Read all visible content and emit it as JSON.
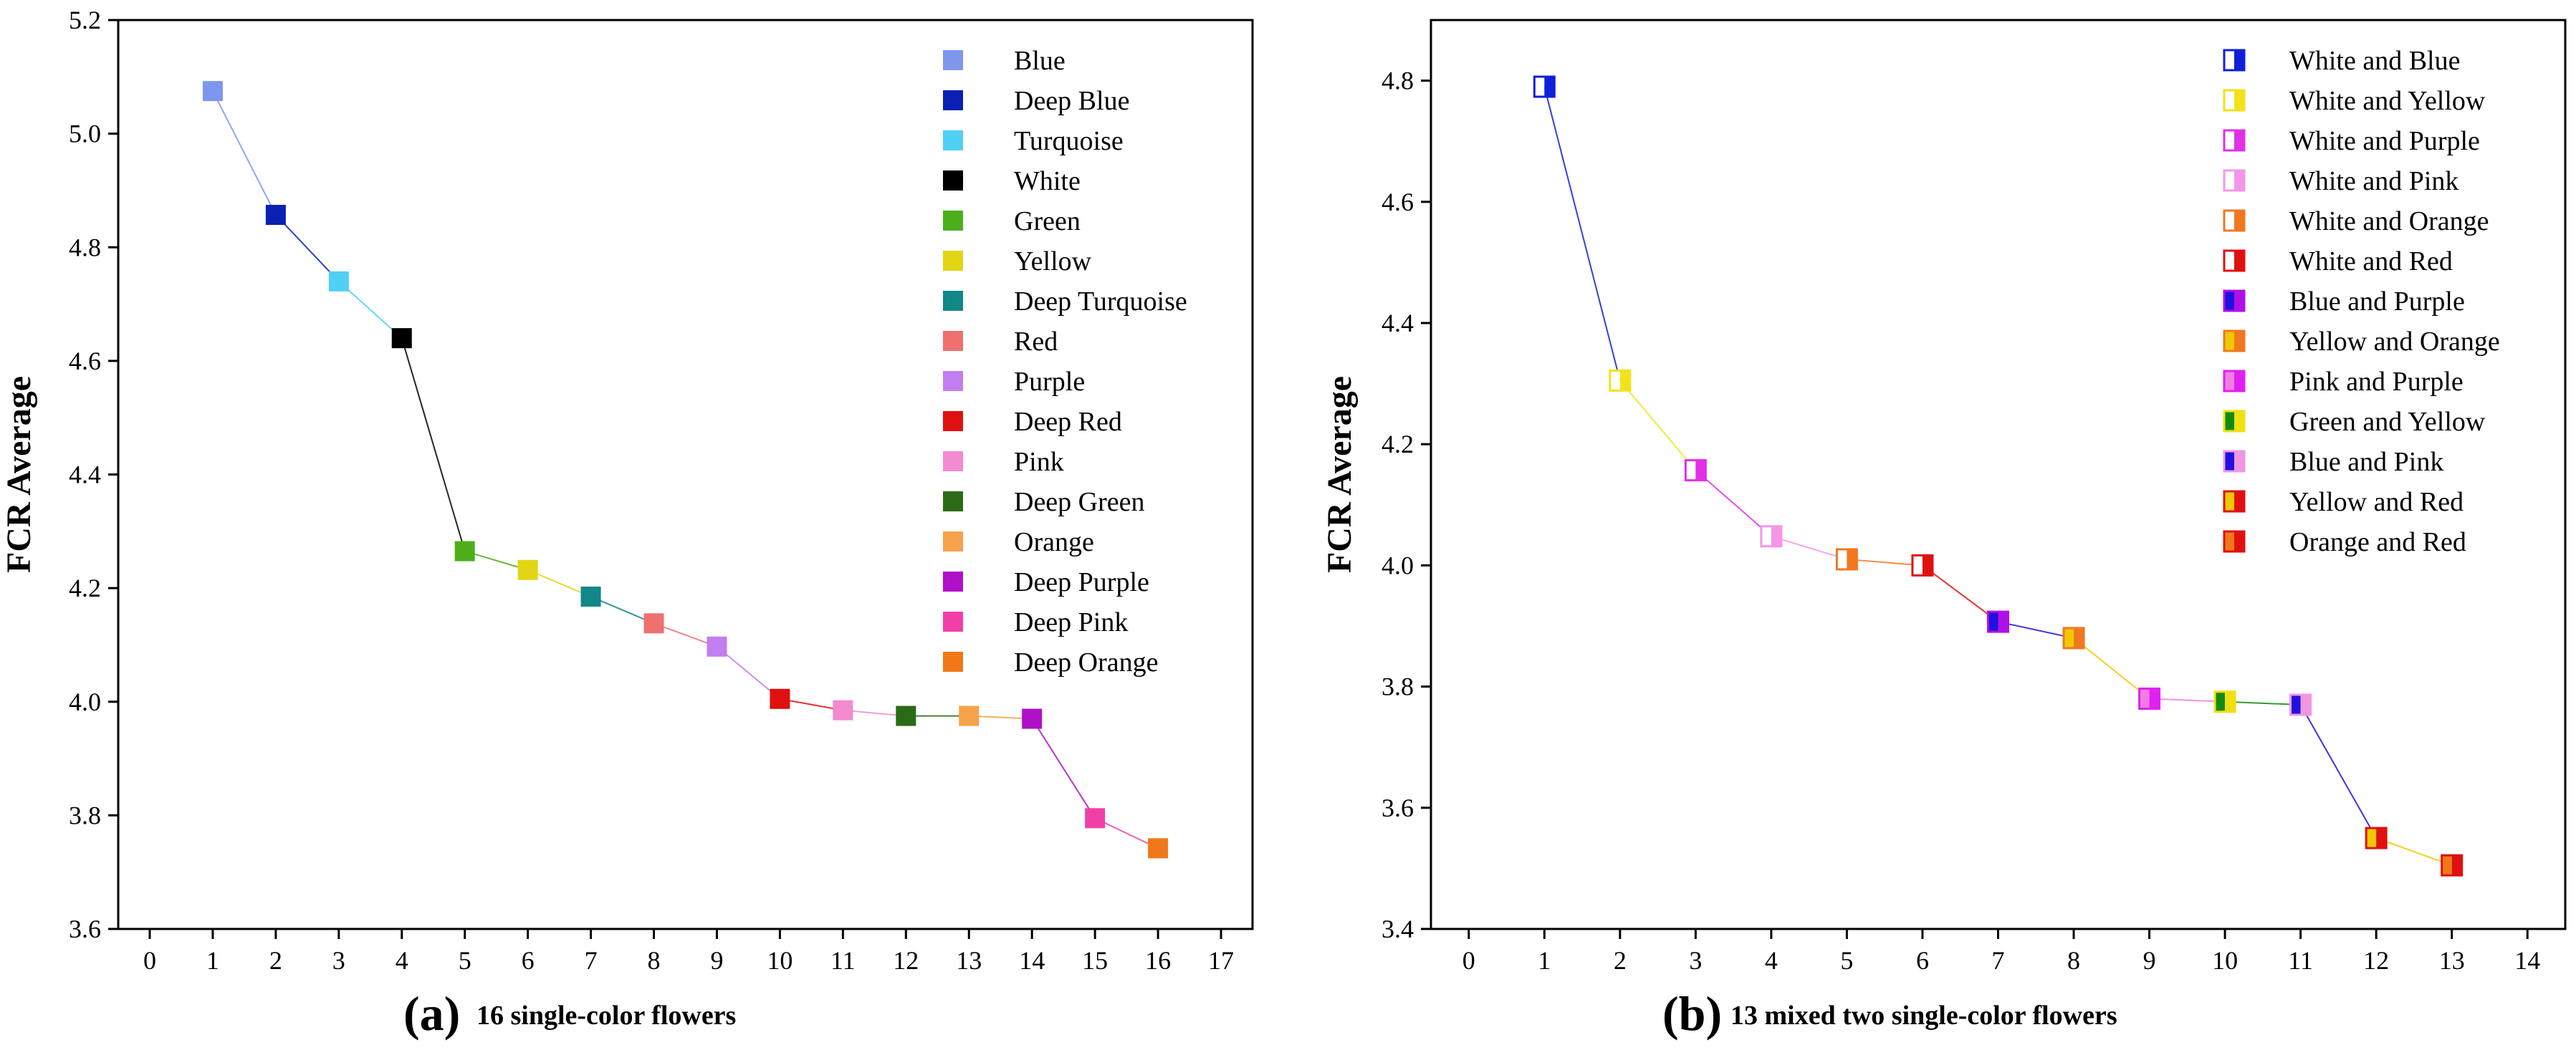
{
  "chart_data": [
    {
      "type": "line",
      "panel_label": "(a)",
      "caption": "16 single-color flowers",
      "title": "",
      "xlabel": "",
      "ylabel": "FCR Average",
      "xlim": [
        -0.5,
        17.5
      ],
      "ylim": [
        3.6,
        5.2
      ],
      "xticks": [
        "0",
        "1",
        "2",
        "3",
        "4",
        "5",
        "6",
        "7",
        "8",
        "9",
        "10",
        "11",
        "12",
        "13",
        "14",
        "15",
        "16",
        "17"
      ],
      "yticks": [
        "3.6",
        "3.8",
        "4.0",
        "4.2",
        "4.4",
        "4.6",
        "4.8",
        "5.0",
        "5.2"
      ],
      "legend_position": "top-right",
      "series": [
        {
          "name": "Blue",
          "x": 1,
          "y": 5.075,
          "color": "#7f96ef",
          "marker": "solid"
        },
        {
          "name": "Deep Blue",
          "x": 2,
          "y": 4.857,
          "color": "#0a20b4",
          "marker": "solid"
        },
        {
          "name": "Turquoise",
          "x": 3,
          "y": 4.74,
          "color": "#4fd0f5",
          "marker": "solid"
        },
        {
          "name": "White",
          "x": 4,
          "y": 4.64,
          "color": "#000000",
          "marker": "solid"
        },
        {
          "name": "Green",
          "x": 5,
          "y": 4.265,
          "color": "#4caf1a",
          "marker": "solid"
        },
        {
          "name": "Yellow",
          "x": 6,
          "y": 4.232,
          "color": "#e2d614",
          "marker": "solid"
        },
        {
          "name": "Deep Turquoise",
          "x": 7,
          "y": 4.185,
          "color": "#118787",
          "marker": "solid"
        },
        {
          "name": "Red",
          "x": 8,
          "y": 4.138,
          "color": "#f07070",
          "marker": "solid"
        },
        {
          "name": "Purple",
          "x": 9,
          "y": 4.097,
          "color": "#c07ef0",
          "marker": "solid"
        },
        {
          "name": "Deep Red",
          "x": 10,
          "y": 4.005,
          "color": "#e01010",
          "marker": "solid"
        },
        {
          "name": "Pink",
          "x": 11,
          "y": 3.985,
          "color": "#f48ad0",
          "marker": "solid"
        },
        {
          "name": "Deep Green",
          "x": 12,
          "y": 3.975,
          "color": "#2c6b16",
          "marker": "solid"
        },
        {
          "name": "Orange",
          "x": 13,
          "y": 3.975,
          "color": "#f6a24a",
          "marker": "solid"
        },
        {
          "name": "Deep Purple",
          "x": 14,
          "y": 3.97,
          "color": "#b010c8",
          "marker": "solid"
        },
        {
          "name": "Deep Pink",
          "x": 15,
          "y": 3.795,
          "color": "#f040a8",
          "marker": "solid"
        },
        {
          "name": "Deep Orange",
          "x": 16,
          "y": 3.742,
          "color": "#f07818",
          "marker": "solid"
        }
      ]
    },
    {
      "type": "line",
      "panel_label": "(b)",
      "caption": "13 mixed two single-color flowers",
      "title": "",
      "xlabel": "",
      "ylabel": "FCR Average",
      "xlim": [
        -0.5,
        14.5
      ],
      "ylim": [
        3.4,
        4.9
      ],
      "xticks": [
        "0",
        "1",
        "2",
        "3",
        "4",
        "5",
        "6",
        "7",
        "8",
        "9",
        "10",
        "11",
        "12",
        "13",
        "14"
      ],
      "yticks": [
        "3.4",
        "3.6",
        "3.8",
        "4.0",
        "4.2",
        "4.4",
        "4.6",
        "4.8"
      ],
      "legend_position": "top-right",
      "series": [
        {
          "name": "White and Blue",
          "x": 1,
          "y": 4.79,
          "color": "#ffffff",
          "color2": "#1020d8",
          "marker": "split"
        },
        {
          "name": "White and Yellow",
          "x": 2,
          "y": 4.305,
          "color": "#ffffff",
          "color2": "#f2e21a",
          "marker": "split"
        },
        {
          "name": "White and Purple",
          "x": 3,
          "y": 4.157,
          "color": "#ffffff",
          "color2": "#e030e8",
          "marker": "split"
        },
        {
          "name": "White and Pink",
          "x": 4,
          "y": 4.048,
          "color": "#ffffff",
          "color2": "#f496e8",
          "marker": "split"
        },
        {
          "name": "White and Orange",
          "x": 5,
          "y": 4.01,
          "color": "#ffffff",
          "color2": "#f07820",
          "marker": "split"
        },
        {
          "name": "White and Red",
          "x": 6,
          "y": 4.0,
          "color": "#ffffff",
          "color2": "#e01010",
          "marker": "split"
        },
        {
          "name": "Blue and Purple",
          "x": 7,
          "y": 3.907,
          "color": "#2010e0",
          "color2": "#b010e8",
          "marker": "split"
        },
        {
          "name": "Yellow and Orange",
          "x": 8,
          "y": 3.88,
          "color": "#f0c800",
          "color2": "#f07820",
          "marker": "split"
        },
        {
          "name": "Pink and Purple",
          "x": 9,
          "y": 3.78,
          "color": "#f07ee0",
          "color2": "#e020f0",
          "marker": "split"
        },
        {
          "name": "Green and Yellow",
          "x": 10,
          "y": 3.775,
          "color": "#108a10",
          "color2": "#f0e010",
          "marker": "split"
        },
        {
          "name": "Blue and Pink",
          "x": 11,
          "y": 3.77,
          "color": "#2010e0",
          "color2": "#f096e0",
          "marker": "split"
        },
        {
          "name": "Yellow and Red",
          "x": 12,
          "y": 3.55,
          "color": "#f0c800",
          "color2": "#e01010",
          "marker": "split"
        },
        {
          "name": "Orange and Red",
          "x": 13,
          "y": 3.505,
          "color": "#f07818",
          "color2": "#e01010",
          "marker": "split"
        }
      ]
    }
  ]
}
